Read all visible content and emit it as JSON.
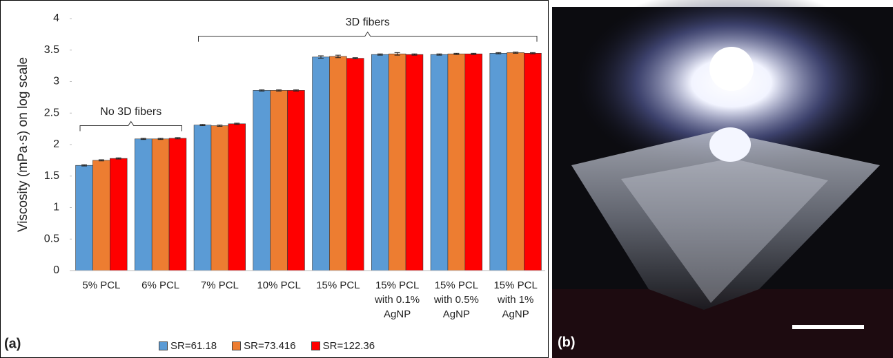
{
  "chart_data": {
    "type": "bar",
    "ylabel": "Viscosity (mPa·s) on log scale",
    "categories": [
      "5% PCL",
      "6% PCL",
      "7% PCL",
      "10% PCL",
      "15% PCL",
      "15% PCL with 0.1% AgNP",
      "15% PCL with 0.5% AgNP",
      "15% PCL with 1% AgNP"
    ],
    "series": [
      {
        "name": "SR=61.18",
        "color": "#5b9bd5",
        "values": [
          1.67,
          2.09,
          2.31,
          2.86,
          3.39,
          3.43,
          3.43,
          3.45
        ],
        "errors": [
          0.01,
          0.01,
          0.01,
          0.01,
          0.02,
          0.01,
          0.01,
          0.01
        ]
      },
      {
        "name": "SR=73.416",
        "color": "#ed7d31",
        "values": [
          1.75,
          2.09,
          2.3,
          2.86,
          3.4,
          3.44,
          3.44,
          3.46
        ],
        "errors": [
          0.01,
          0.01,
          0.01,
          0.01,
          0.02,
          0.02,
          0.01,
          0.01
        ]
      },
      {
        "name": "SR=122.36",
        "color": "#ff0000",
        "values": [
          1.78,
          2.1,
          2.33,
          2.86,
          3.37,
          3.43,
          3.44,
          3.45
        ],
        "errors": [
          0.01,
          0.01,
          0.01,
          0.01,
          0.01,
          0.01,
          0.01,
          0.01
        ]
      }
    ],
    "ylim": [
      0,
      4
    ],
    "yticks": [
      0,
      0.5,
      1,
      1.5,
      2,
      2.5,
      3,
      3.5,
      4
    ],
    "annotations": [
      "No 3D fibers",
      "3D fibers"
    ]
  },
  "figure": {
    "panel_a": "(a)",
    "panel_b": "(b)"
  }
}
